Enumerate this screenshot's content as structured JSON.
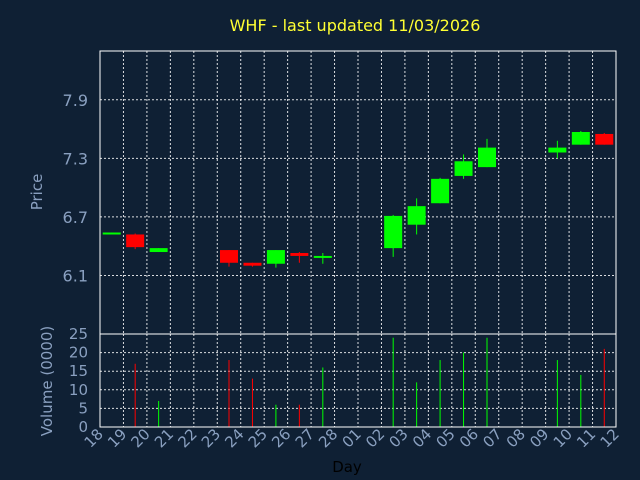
{
  "chart_data": {
    "type": "candlestick",
    "title": "WHF - last updated 11/03/2026",
    "xlabel": "Day",
    "price_axis": {
      "label": "Price",
      "ylim": [
        5.5,
        8.4
      ],
      "ticks": [
        6.1,
        6.7,
        7.3,
        7.9
      ],
      "tick_labels": [
        "6.1",
        "6.7",
        "7.3",
        "7.9"
      ]
    },
    "volume_axis": {
      "label": "Volume (0000)",
      "ylim": [
        0,
        25
      ],
      "ticks": [
        0,
        5,
        10,
        15,
        20,
        25
      ],
      "tick_labels": [
        "0",
        "5",
        "10",
        "15",
        "20",
        "25"
      ]
    },
    "day_labels": [
      "18",
      "19",
      "20",
      "21",
      "22",
      "23",
      "24",
      "25",
      "26",
      "27",
      "28",
      "01",
      "02",
      "03",
      "04",
      "05",
      "06",
      "07",
      "08",
      "09",
      "10",
      "11",
      "12"
    ],
    "colors": {
      "up": "#00ff00",
      "down": "#ff0000",
      "background": "#0f2034",
      "title": "#ffff33",
      "axis_text": "#8aa0c0"
    },
    "candles": [
      {
        "day": "18",
        "open": 6.53,
        "close": 6.54,
        "high": 6.54,
        "low": 6.53,
        "volume": 0
      },
      {
        "day": "19",
        "open": 6.52,
        "close": 6.39,
        "high": 6.53,
        "low": 6.37,
        "volume": 17
      },
      {
        "day": "20",
        "open": 6.34,
        "close": 6.38,
        "high": 6.38,
        "low": 6.34,
        "volume": 7
      },
      {
        "day": "23",
        "open": 6.36,
        "close": 6.23,
        "high": 6.36,
        "low": 6.19,
        "volume": 18
      },
      {
        "day": "24",
        "open": 6.23,
        "close": 6.2,
        "high": 6.23,
        "low": 6.19,
        "volume": 13
      },
      {
        "day": "25",
        "open": 6.22,
        "close": 6.36,
        "high": 6.36,
        "low": 6.18,
        "volume": 6
      },
      {
        "day": "26",
        "open": 6.33,
        "close": 6.3,
        "high": 6.34,
        "low": 6.23,
        "volume": 6
      },
      {
        "day": "27",
        "open": 6.28,
        "close": 6.3,
        "high": 6.33,
        "low": 6.22,
        "volume": 16
      },
      {
        "day": "02",
        "open": 6.38,
        "close": 6.71,
        "high": 6.72,
        "low": 6.29,
        "volume": 24
      },
      {
        "day": "03",
        "open": 6.62,
        "close": 6.81,
        "high": 6.89,
        "low": 6.52,
        "volume": 12
      },
      {
        "day": "04",
        "open": 6.84,
        "close": 7.09,
        "high": 7.1,
        "low": 6.84,
        "volume": 18
      },
      {
        "day": "05",
        "open": 7.12,
        "close": 7.27,
        "high": 7.34,
        "low": 7.09,
        "volume": 20
      },
      {
        "day": "06",
        "open": 7.21,
        "close": 7.41,
        "high": 7.5,
        "low": 7.21,
        "volume": 24
      },
      {
        "day": "09",
        "open": 7.36,
        "close": 7.41,
        "high": 7.48,
        "low": 7.3,
        "volume": 18
      },
      {
        "day": "10",
        "open": 7.44,
        "close": 7.57,
        "high": 7.58,
        "low": 7.44,
        "volume": 14
      },
      {
        "day": "11",
        "open": 7.55,
        "close": 7.44,
        "high": 7.56,
        "low": 7.44,
        "volume": 21
      }
    ]
  }
}
